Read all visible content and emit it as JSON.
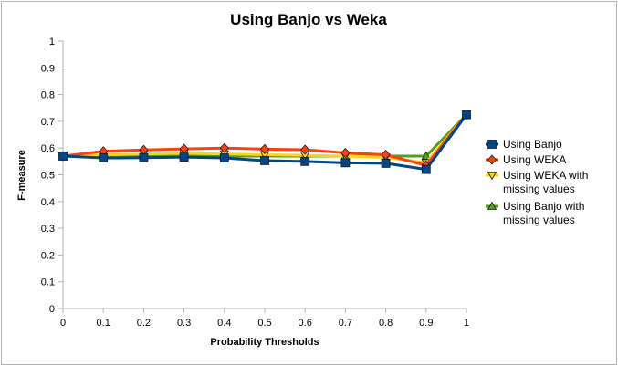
{
  "chart_data": {
    "type": "line",
    "title": "Using Banjo vs Weka",
    "xlabel": "Probability Thresholds",
    "ylabel": "F-measure",
    "x": [
      0,
      0.1,
      0.2,
      0.3,
      0.4,
      0.5,
      0.6,
      0.7,
      0.8,
      0.9,
      1
    ],
    "x_tick_labels": [
      "0",
      "0.1",
      "0.2",
      "0.3",
      "0.4",
      "0.5",
      "0.6",
      "0.7",
      "0.8",
      "0.9",
      "1"
    ],
    "ylim": [
      0,
      1
    ],
    "y_ticks": [
      0,
      0.1,
      0.2,
      0.3,
      0.4,
      0.5,
      0.6,
      0.7,
      0.8,
      0.9,
      1
    ],
    "y_tick_labels": [
      "0",
      "0.1",
      "0.2",
      "0.3",
      "0.4",
      "0.5",
      "0.6",
      "0.7",
      "0.8",
      "0.9",
      "1"
    ],
    "grid": false,
    "legend_position": "right",
    "series": [
      {
        "name": "Using Banjo missing values",
        "label_lines": [
          "Using Banjo with",
          "missing values"
        ],
        "color": "#579d1c",
        "marker": "triangle-up",
        "values": [
          0.57,
          0.57,
          0.57,
          0.57,
          0.57,
          0.57,
          0.57,
          0.57,
          0.57,
          0.57,
          0.725
        ]
      },
      {
        "name": "Using WEKA missing values",
        "label_lines": [
          "Using WEKA with",
          "missing values"
        ],
        "color": "#ffd320",
        "marker": "triangle-down",
        "values": [
          0.57,
          0.575,
          0.578,
          0.58,
          0.578,
          0.575,
          0.573,
          0.57,
          0.565,
          0.545,
          0.725
        ]
      },
      {
        "name": "Using WEKA",
        "label_lines": [
          "Using WEKA"
        ],
        "color": "#ff420e",
        "marker": "diamond",
        "values": [
          0.57,
          0.588,
          0.593,
          0.597,
          0.6,
          0.596,
          0.594,
          0.582,
          0.575,
          0.535,
          0.725
        ]
      },
      {
        "name": "Using Banjo",
        "label_lines": [
          "Using Banjo"
        ],
        "color": "#004586",
        "marker": "square",
        "values": [
          0.57,
          0.563,
          0.564,
          0.566,
          0.563,
          0.553,
          0.55,
          0.545,
          0.543,
          0.52,
          0.725
        ]
      }
    ],
    "legend_order": [
      "Using Banjo",
      "Using WEKA",
      "Using WEKA missing values",
      "Using Banjo missing values"
    ]
  }
}
